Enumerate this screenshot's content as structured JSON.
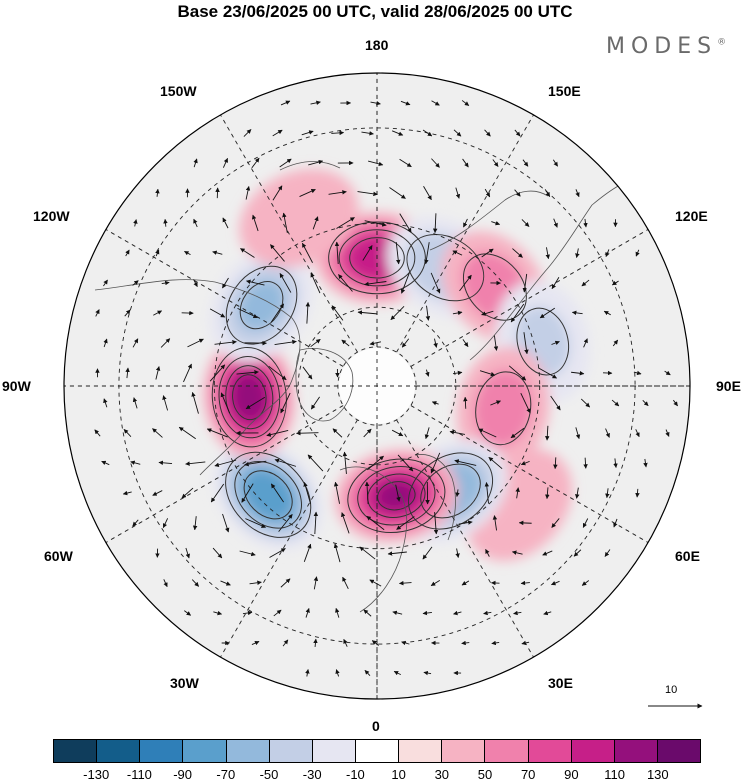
{
  "title": "Base 23/06/2025 00 UTC, valid 28/06/2025 00 UTC",
  "logo": {
    "text": "MODES",
    "mark": "®"
  },
  "longitude_labels": {
    "top": "180",
    "bottom": "0",
    "left": "90W",
    "right": "90E",
    "upper_left": "150W",
    "upper_right": "150E",
    "mid_upper_left": "120W",
    "mid_upper_right": "120E",
    "lower_left": "60W",
    "lower_right": "60E",
    "bottom_left": "30W",
    "bottom_right": "30E"
  },
  "reference_vector": {
    "label": "10"
  },
  "colorbar": {
    "colors": [
      "#0f3d5c",
      "#135d8a",
      "#2f7fb8",
      "#5a9fcc",
      "#93b9dc",
      "#c3cfe6",
      "#e6e6f2",
      "#ffffff",
      "#f9dede",
      "#f6b3c3",
      "#f081ac",
      "#e24a98",
      "#c61f88",
      "#94107c",
      "#6a0a6b"
    ],
    "ticks": [
      "-130",
      "-110",
      "-90",
      "-70",
      "-50",
      "-30",
      "-10",
      "10",
      "30",
      "50",
      "70",
      "90",
      "110",
      "130"
    ]
  },
  "map_data": {
    "projection": "north polar stereographic",
    "anomaly_centers": [
      {
        "lon": 180,
        "lat": 58,
        "value": 95
      },
      {
        "lon": 150,
        "lat": 56,
        "value": -55
      },
      {
        "lon": 130,
        "lat": 52,
        "value": 45
      },
      {
        "lon": 105,
        "lat": 48,
        "value": -40
      },
      {
        "lon": 80,
        "lat": 58,
        "value": 45
      },
      {
        "lon": 50,
        "lat": 45,
        "value": 25
      },
      {
        "lon": 35,
        "lat": 58,
        "value": -75
      },
      {
        "lon": 10,
        "lat": 62,
        "value": 100
      },
      {
        "lon": -45,
        "lat": 52,
        "value": -95
      },
      {
        "lon": -85,
        "lat": 58,
        "value": 110
      },
      {
        "lon": -125,
        "lat": 55,
        "value": -60
      },
      {
        "lon": -155,
        "lat": 45,
        "value": 25
      }
    ]
  }
}
